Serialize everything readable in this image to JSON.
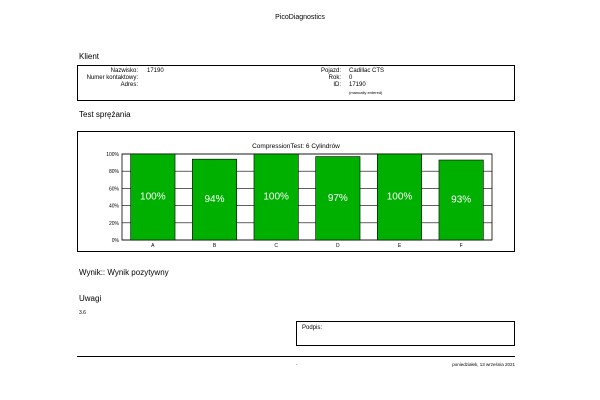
{
  "header": {
    "title": "PicoDiagnostics"
  },
  "client": {
    "heading": "Klient",
    "surname_label": "Nazwisko:",
    "surname_value": "17190",
    "contact_label": "Numer kontaktowy:",
    "contact_value": "",
    "address_label": "Adres:",
    "address_value": "",
    "vehicle_label": "Pojazd:",
    "vehicle_value": "Cadillac CTS",
    "year_label": "Rok:",
    "year_value": "0",
    "id_label": "ID:",
    "id_value": "17190",
    "id_note": "(manually entered)"
  },
  "test": {
    "heading": "Test sprężania"
  },
  "chart_data": {
    "type": "bar",
    "title": "CompressionTest: 6 Cylindrów",
    "categories": [
      "A",
      "B",
      "C",
      "D",
      "E",
      "F"
    ],
    "values": [
      100,
      94,
      100,
      97,
      100,
      93
    ],
    "value_labels": [
      "100%",
      "94%",
      "100%",
      "97%",
      "100%",
      "93%"
    ],
    "y_ticks": [
      "0%",
      "20%",
      "40%",
      "60%",
      "80%",
      "100%"
    ],
    "ylim": [
      0,
      100
    ],
    "grid": true,
    "bar_color": "#00b000"
  },
  "result": {
    "text": "Wynik:: Wynik pozytywny"
  },
  "notes": {
    "heading": "Uwagi",
    "text": "3.6"
  },
  "signature": {
    "label": "Podpis:"
  },
  "footer": {
    "center": "-",
    "date": "poniedziałek, 13 września 2021"
  }
}
